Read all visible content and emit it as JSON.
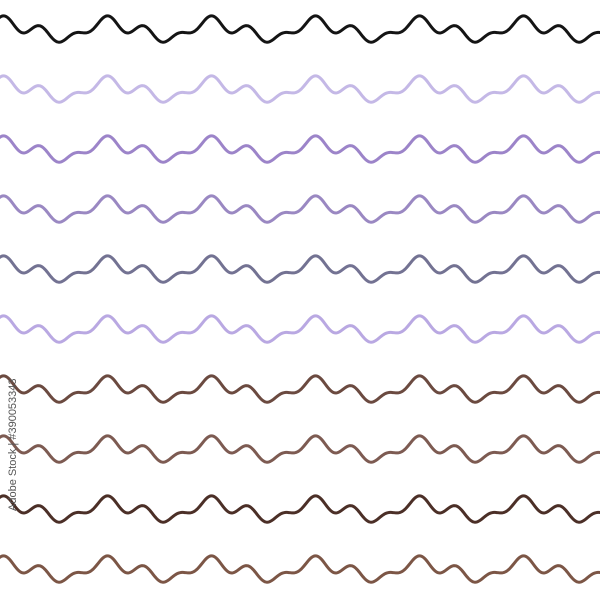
{
  "pattern": {
    "rows": [
      {
        "color": "#141414"
      },
      {
        "color": "#c4b8e6"
      },
      {
        "color": "#9c84c9"
      },
      {
        "color": "#9a88c2"
      },
      {
        "color": "#737292"
      },
      {
        "color": "#b9a8e2"
      },
      {
        "color": "#6b4a40"
      },
      {
        "color": "#7d5b52"
      },
      {
        "color": "#4b2f27"
      },
      {
        "color": "#7c5646"
      }
    ]
  },
  "watermark": {
    "text": "Adobe Stock | #390053343"
  }
}
